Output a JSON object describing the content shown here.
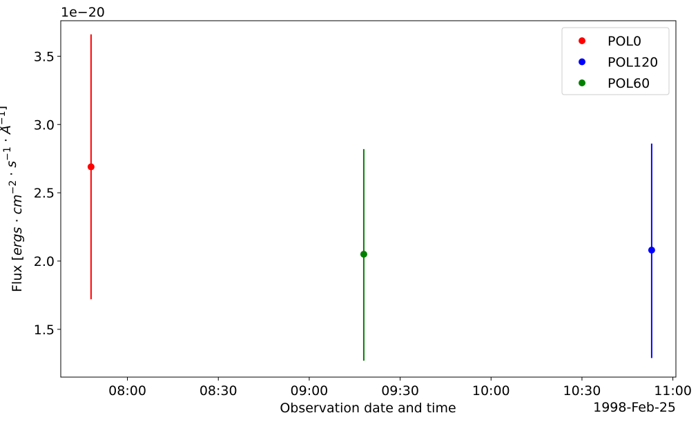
{
  "chart_data": {
    "type": "scatter",
    "title": "",
    "xlabel": "Observation date and time",
    "ylabel_parts": [
      {
        "t": "Flux ["
      },
      {
        "t": "ergs",
        "i": true
      },
      {
        "t": " · "
      },
      {
        "t": "cm",
        "i": true
      },
      {
        "t": "−2",
        "sup": true
      },
      {
        "t": " · "
      },
      {
        "t": "s",
        "i": true
      },
      {
        "t": "−1",
        "sup": true
      },
      {
        "t": " · "
      },
      {
        "t": "Å",
        "i": true
      },
      {
        "t": "−1",
        "sup": true
      },
      {
        "t": "]"
      }
    ],
    "y_offset_label": "1e−20",
    "date_offset_label": "1998-Feb-25",
    "x_ticks": [
      "08:00",
      "08:30",
      "09:00",
      "09:30",
      "10:00",
      "10:30",
      "11:00"
    ],
    "y_ticks": [
      "1.5",
      "2.0",
      "2.5",
      "3.0",
      "3.5"
    ],
    "xlim": [
      "07:38",
      "11:01"
    ],
    "ylim": [
      1.15,
      3.76
    ],
    "grid": false,
    "legend_position": "top-right",
    "series": [
      {
        "name": "POL0",
        "color": "#ff0000",
        "x": "07:48",
        "y": 2.69,
        "yerr_low": 1.72,
        "yerr_high": 3.66
      },
      {
        "name": "POL120",
        "color": "#0000ff",
        "x": "10:53",
        "y": 2.08,
        "yerr_low": 1.29,
        "yerr_high": 2.86
      },
      {
        "name": "POL60",
        "color": "#008000",
        "x": "09:18",
        "y": 2.05,
        "yerr_low": 1.27,
        "yerr_high": 2.82
      }
    ]
  }
}
